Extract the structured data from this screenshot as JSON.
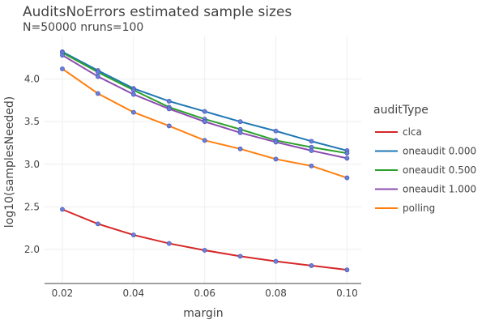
{
  "chart_data": {
    "type": "line",
    "title": "AuditsNoErrors estimated sample sizes",
    "subtitle": "N=50000 nruns=100",
    "xlabel": "margin",
    "ylabel": "log10(samplesNeeded)",
    "xlim": [
      0.015,
      0.104
    ],
    "ylim": [
      1.6,
      4.5
    ],
    "x_ticks": [
      0.02,
      0.04,
      0.06,
      0.08,
      0.1
    ],
    "x_tick_labels": [
      "0.02",
      "0.04",
      "0.06",
      "0.08",
      "0.10"
    ],
    "y_ticks": [
      2.0,
      2.5,
      3.0,
      3.5,
      4.0
    ],
    "y_tick_labels": [
      "2.0",
      "2.5",
      "3.0",
      "3.5",
      "4.0"
    ],
    "grid": true,
    "legend_title": "auditType",
    "legend_position": "right",
    "x": [
      0.02,
      0.03,
      0.04,
      0.05,
      0.06,
      0.07,
      0.08,
      0.09,
      0.1
    ],
    "series": [
      {
        "name": "clca",
        "color": "#d62728",
        "values": [
          2.47,
          2.3,
          2.17,
          2.07,
          1.99,
          1.92,
          1.86,
          1.81,
          1.76
        ]
      },
      {
        "name": "oneaudit 0.000",
        "color": "#1f77b4",
        "values": [
          4.32,
          4.1,
          3.89,
          3.74,
          3.62,
          3.5,
          3.39,
          3.27,
          3.16
        ]
      },
      {
        "name": "oneaudit 0.500",
        "color": "#2ca02c",
        "values": [
          4.31,
          4.08,
          3.87,
          3.67,
          3.53,
          3.41,
          3.28,
          3.2,
          3.13
        ]
      },
      {
        "name": "oneaudit 1.000",
        "color": "#8c4bb0",
        "values": [
          4.28,
          4.03,
          3.82,
          3.65,
          3.5,
          3.37,
          3.26,
          3.16,
          3.07
        ]
      },
      {
        "name": "polling",
        "color": "#ff7f0e",
        "values": [
          4.12,
          3.83,
          3.61,
          3.45,
          3.28,
          3.18,
          3.06,
          2.98,
          2.84
        ]
      }
    ],
    "marker_color": "#6b7fd7"
  }
}
